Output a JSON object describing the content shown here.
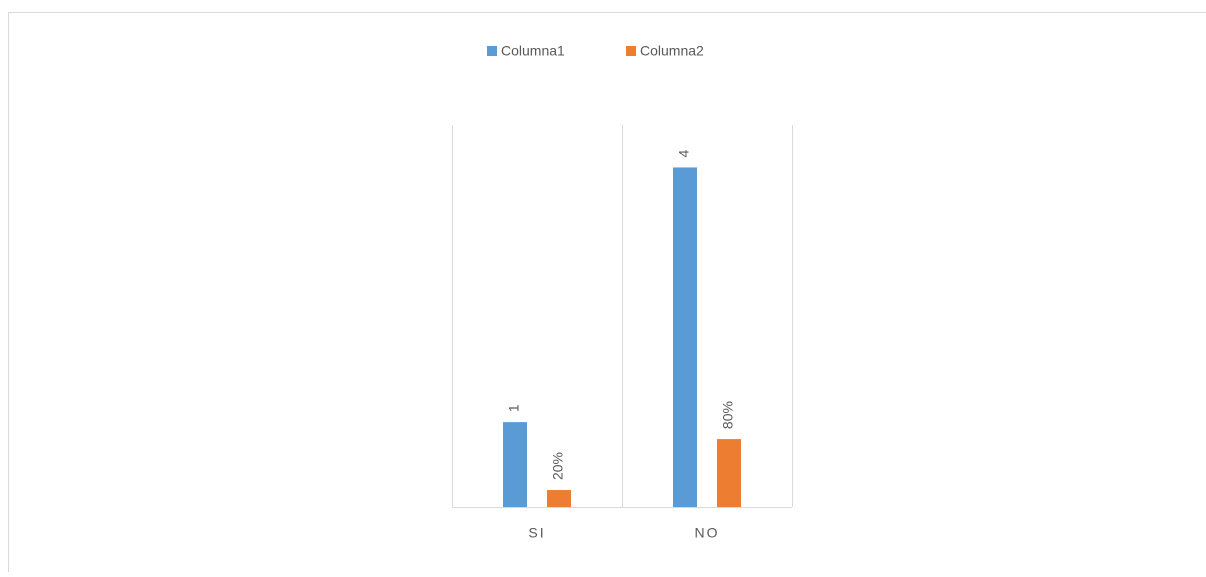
{
  "chart_data": {
    "type": "bar",
    "categories": [
      "SI",
      "NO"
    ],
    "series": [
      {
        "name": "Columna1",
        "color": "#5b9bd5",
        "values": [
          1,
          4
        ]
      },
      {
        "name": "Columna2",
        "color": "#ed7d31",
        "values": [
          0.2,
          0.8
        ],
        "value_labels": [
          "20%",
          "80%"
        ]
      }
    ],
    "ylim": [
      0,
      4.5
    ],
    "grid": false,
    "legend": "top"
  }
}
